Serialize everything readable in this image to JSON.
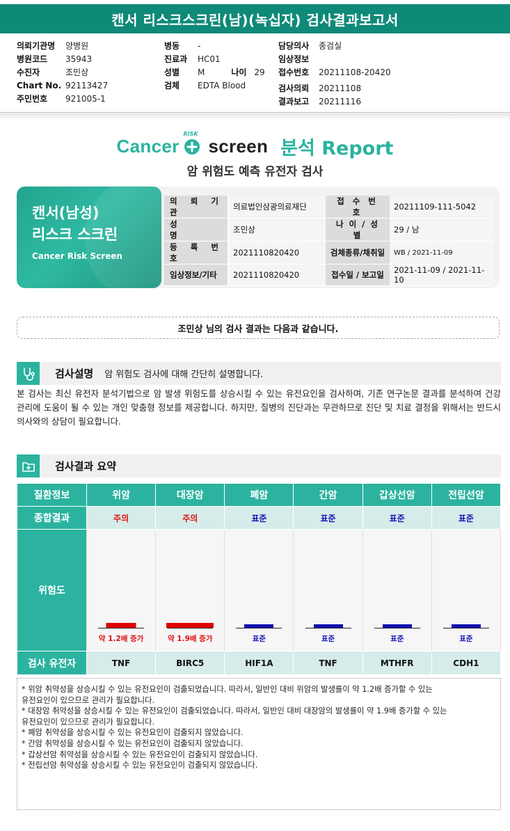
{
  "header": {
    "title": "캔서 리스크스크린(남)(녹십자) 검사결과보고서"
  },
  "meta": {
    "col1": [
      {
        "label": "의뢰기관명",
        "value": "양병원"
      },
      {
        "label": "병원코드",
        "value": "35943"
      },
      {
        "label": "수진자",
        "value": "조민상"
      },
      {
        "label": "Chart No.",
        "value": "92113427"
      },
      {
        "label": "주민번호",
        "value": "921005-1"
      }
    ],
    "col2": [
      {
        "label": "병동",
        "value": "-"
      },
      {
        "label": "진료과",
        "value": "HC01"
      },
      {
        "label": "성별",
        "value": "M"
      },
      {
        "label": "검체",
        "value": "EDTA Blood"
      }
    ],
    "age": {
      "label": "나이",
      "value": "29"
    },
    "col3": [
      {
        "label": "담당의사",
        "value": "종검실"
      },
      {
        "label": "임상정보",
        "value": ""
      },
      {
        "label": "접수번호",
        "value": "20211108-20420"
      },
      {
        "label": "",
        "value": ""
      },
      {
        "label": "검사의뢰",
        "value": "20211108"
      },
      {
        "label": "결과보고",
        "value": "20211116"
      }
    ]
  },
  "brand": {
    "cancer": "Cancer",
    "risk": "RISK",
    "screen": "screen",
    "report": "분석 Report",
    "subtitle": "암 위험도 예측 유전자 검사"
  },
  "card": {
    "title1": "캔서(남성)",
    "title2": "리스크 스크린",
    "title_en": "Cancer Risk Screen",
    "rows": [
      {
        "l1": "의 뢰 기 관",
        "v1": "의료법인삼광의료재단",
        "l2": "접 수 번 호",
        "v2": "20211109-111-5042"
      },
      {
        "l1": "성 명",
        "v1": "조민상",
        "l2": "나 이 / 성 별",
        "v2": "29 / 남"
      },
      {
        "l1": "등 록 번 호",
        "v1": "2021110820420",
        "l2": "검체종류/채취일",
        "v2": "WB / 2021-11-09"
      },
      {
        "l1": "임상정보/기타",
        "v1": "2021110820420",
        "l2": "접수일 / 보고일",
        "v2": "2021-11-09 / 2021-11-10"
      }
    ]
  },
  "banner": {
    "text": "조민상 님의 검사 결과는 다음과 같습니다."
  },
  "section1": {
    "title": "검사설명",
    "desc": "암 위험도 검사에 대해 간단히 설명합니다.",
    "paragraph": "본 검사는 최신 유전자 분석기법으로 암 발생 위험도를 상승시킬 수 있는 유전요인을 검사하며, 기존 연구논문 결과를 분석하여 건강 관리에 도움이 될 수 있는 개인 맞춤형 정보를 제공합니다. 하지만, 질병의 진단과는 무관하므로 진단 및 치료 결정을 위해서는 반드시 의사와의 상담이 필요합니다."
  },
  "section2": {
    "title": "검사결과 요약"
  },
  "results": {
    "row_labels": {
      "disease": "질환정보",
      "overall": "종합결과",
      "risk": "위험도",
      "gene": "검사 유전자"
    },
    "items": [
      {
        "disease": "위암",
        "overall": "주의",
        "status": "caution",
        "relative_risk": 1.2,
        "risk_label": "약 1.2배 증가",
        "gene": "TNF"
      },
      {
        "disease": "대장암",
        "overall": "주의",
        "status": "caution",
        "relative_risk": 1.9,
        "risk_label": "약 1.9배 증가",
        "gene": "BIRC5"
      },
      {
        "disease": "폐암",
        "overall": "표준",
        "status": "standard",
        "relative_risk": 1.0,
        "risk_label": "표준",
        "gene": "HIF1A"
      },
      {
        "disease": "간암",
        "overall": "표준",
        "status": "standard",
        "relative_risk": 1.0,
        "risk_label": "표준",
        "gene": "TNF"
      },
      {
        "disease": "갑상선암",
        "overall": "표준",
        "status": "standard",
        "relative_risk": 1.0,
        "risk_label": "표준",
        "gene": "MTHFR"
      },
      {
        "disease": "전립선암",
        "overall": "표준",
        "status": "standard",
        "relative_risk": 1.0,
        "risk_label": "표준",
        "gene": "CDH1"
      }
    ],
    "colors": {
      "caution": "#e00000",
      "standard": "#1010b0",
      "accent": "#2bb3a0"
    }
  },
  "notes": [
    "* 위암 취약성을 상승시킬 수 있는 유전요인이 검출되었습니다. 따라서, 일반인 대비 위암의 발생률이 약 1.2배 증가할 수 있는",
    "유전요인이 있으므로 관리가 필요합니다.",
    "* 대장암 취약성을 상승시킬 수 있는 유전요인이 검출되었습니다. 따라서, 일반인 대비 대장암의 발생률이 약 1.9배 증가할 수 있는",
    "유전요인이 있으므로 관리가 필요합니다.",
    "* 폐암 취약성을 상승시킬 수 있는 유전요인이 검출되지 않았습니다.",
    "* 간암 취약성을 상승시킬 수 있는 유전요인이 검출되지 않았습니다.",
    "* 갑상선암 취약성을 상승시킬 수 있는 유전요인이 검출되지 않았습니다.",
    "* 전립선암 취약성을 상승시킬 수 있는 유전요인이 검출되지 않았습니다."
  ]
}
